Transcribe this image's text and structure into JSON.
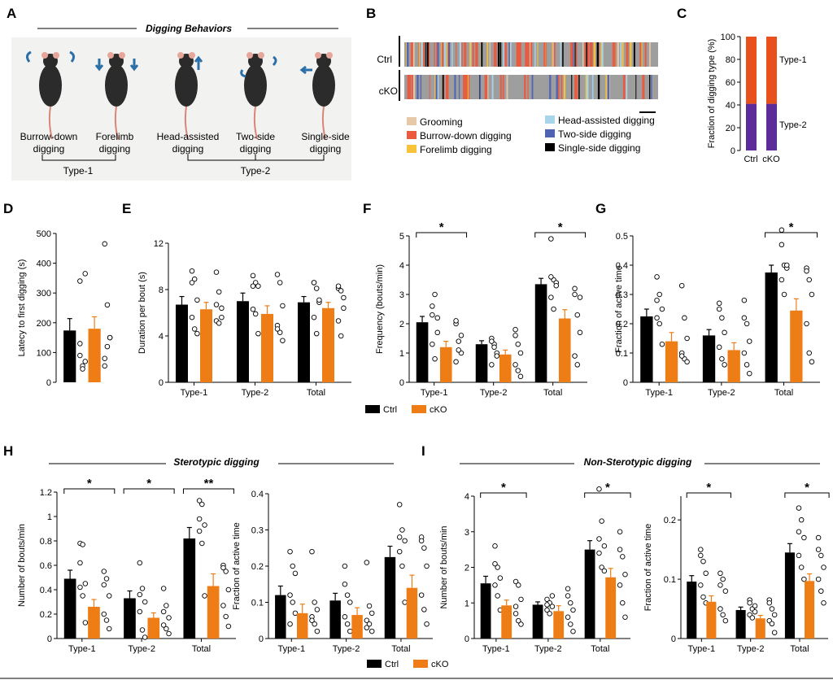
{
  "colors": {
    "ctrl": "#000000",
    "cko": "#ef7d16",
    "type1": "#e8501c",
    "type2": "#5b2c9a"
  },
  "legend": {
    "ctrl": "Ctrl",
    "cko": "cKO"
  },
  "panel_labels": [
    "A",
    "B",
    "C",
    "D",
    "E",
    "F",
    "G",
    "H",
    "I"
  ],
  "panelA": {
    "title": "Digging Behaviors",
    "behaviors": [
      {
        "line1": "Burrow-down",
        "line2": "digging"
      },
      {
        "line1": "Forelimb",
        "line2": "digging"
      },
      {
        "line1": "Head-assisted",
        "line2": "digging"
      },
      {
        "line1": "Two-side",
        "line2": "digging"
      },
      {
        "line1": "Single-side",
        "line2": "digging"
      }
    ],
    "type1_label": "Type-1",
    "type2_label": "Type-2"
  },
  "panelB": {
    "rows": [
      "Ctrl",
      "cKO"
    ],
    "legend_left": [
      {
        "label": "Grooming",
        "color": "#e5c9a8"
      },
      {
        "label": "Burrow-down digging",
        "color": "#ea5a3e"
      },
      {
        "label": "Forelimb digging",
        "color": "#f6c33a"
      }
    ],
    "legend_right": [
      {
        "label": "Head-assisted digging",
        "color": "#a9d5ea"
      },
      {
        "label": "Two-side digging",
        "color": "#4f63b3"
      },
      {
        "label": "Single-side digging",
        "color": "#000000"
      }
    ]
  },
  "panelH": {
    "title": "Sterotypic digging"
  },
  "panelI": {
    "title": "Non-Sterotypic digging"
  },
  "chart_data": [
    {
      "id": "C",
      "type": "bar",
      "stacked": true,
      "categories": [
        "Ctrl",
        "cKO"
      ],
      "ylabel": "Fraction of digging type (%)",
      "ylim": [
        0,
        100
      ],
      "yticks": [
        0,
        20,
        40,
        60,
        80,
        100
      ],
      "series": [
        {
          "name": "Type-2",
          "values": [
            41,
            41
          ]
        },
        {
          "name": "Type-1",
          "values": [
            59,
            59
          ]
        }
      ]
    },
    {
      "id": "D",
      "type": "bar",
      "ylabel": "Latecy to first digging (s)",
      "ylim": [
        0,
        500
      ],
      "yticks": [
        0,
        100,
        200,
        300,
        400,
        500
      ],
      "groups": [
        ""
      ],
      "sig": [
        ""
      ],
      "series": [
        {
          "name": "Ctrl",
          "values": [
            174
          ],
          "err": [
            40
          ],
          "points": [
            [
              90,
              55,
              365,
              340,
              45,
              70,
              130
            ]
          ]
        },
        {
          "name": "cKO",
          "values": [
            180
          ],
          "err": [
            40
          ],
          "points": [
            [
              465,
              260,
              150,
              80,
              120,
              150,
              55
            ]
          ]
        }
      ]
    },
    {
      "id": "E",
      "type": "bar",
      "ylabel": "Duration per bout (s)",
      "ylim": [
        0,
        12
      ],
      "yticks": [
        0,
        4,
        8,
        12
      ],
      "groups": [
        "Type-1",
        "Type-2",
        "Total"
      ],
      "sig": [
        "",
        "",
        ""
      ],
      "series": [
        {
          "name": "Ctrl",
          "values": [
            6.7,
            7.0,
            6.9
          ],
          "err": [
            0.7,
            0.7,
            0.5
          ],
          "points": [
            [
              9.6,
              8.9,
              7.1,
              5.6,
              4.6,
              4.2,
              8.6
            ],
            [
              9.2,
              8.6,
              8.3,
              6.3,
              5.9,
              4.2,
              8.3
            ],
            [
              8.6,
              8.1,
              6.9,
              5.6,
              4.2,
              7.1,
              8.6
            ]
          ]
        },
        {
          "name": "cKO",
          "values": [
            6.3,
            5.9,
            6.4
          ],
          "err": [
            0.6,
            0.7,
            0.5
          ],
          "points": [
            [
              9.5,
              7.8,
              6.4,
              5.3,
              5.1,
              5.6,
              6.7
            ],
            [
              9.3,
              8.6,
              6.6,
              4.9,
              4.3,
              3.6,
              4.6
            ],
            [
              8.1,
              7.9,
              6.4,
              5.3,
              4.0,
              7.3,
              8.3
            ]
          ]
        }
      ]
    },
    {
      "id": "F",
      "type": "bar",
      "ylabel": "Frequency (bouts/min)",
      "ylim": [
        0,
        5
      ],
      "yticks": [
        0,
        1,
        2,
        3,
        4,
        5
      ],
      "groups": [
        "Type-1",
        "Type-2",
        "Total"
      ],
      "sig": [
        "*",
        "",
        "*"
      ],
      "series": [
        {
          "name": "Ctrl",
          "values": [
            2.05,
            1.3,
            3.35
          ],
          "err": [
            0.2,
            0.12,
            0.2
          ],
          "points": [
            [
              2.6,
              3.0,
              2.2,
              1.3,
              0.8,
              1.7,
              2.3
            ],
            [
              1.5,
              1.3,
              1.0,
              1.4,
              1.2,
              0.9,
              0.6
            ],
            [
              4.9,
              3.5,
              3.4,
              2.9,
              2.5,
              3.3,
              3.6
            ]
          ]
        },
        {
          "name": "cKO",
          "values": [
            1.2,
            0.95,
            2.18
          ],
          "err": [
            0.2,
            0.15,
            0.3
          ],
          "points": [
            [
              2.0,
              1.4,
              1.0,
              0.7,
              1.1,
              1.6,
              2.1
            ],
            [
              1.6,
              1.3,
              1.0,
              0.6,
              0.4,
              0.2,
              1.8
            ],
            [
              3.0,
              2.3,
              1.7,
              0.9,
              0.6,
              2.9,
              3.2
            ]
          ]
        }
      ]
    },
    {
      "id": "G",
      "type": "bar",
      "ylabel": "Fraction of active time",
      "ylim": [
        0,
        0.5
      ],
      "yticks": [
        0,
        0.1,
        0.2,
        0.3,
        0.4,
        0.5
      ],
      "groups": [
        "Type-1",
        "Type-2",
        "Total"
      ],
      "sig": [
        "",
        "",
        "*"
      ],
      "series": [
        {
          "name": "Ctrl",
          "values": [
            0.225,
            0.16,
            0.375
          ],
          "err": [
            0.025,
            0.02,
            0.025
          ],
          "points": [
            [
              0.36,
              0.3,
              0.25,
              0.22,
              0.2,
              0.13,
              0.28
            ],
            [
              0.27,
              0.22,
              0.17,
              0.12,
              0.08,
              0.06,
              0.25
            ],
            [
              0.52,
              0.4,
              0.39,
              0.35,
              0.3,
              0.4,
              0.47
            ]
          ]
        },
        {
          "name": "cKO",
          "values": [
            0.14,
            0.11,
            0.245
          ],
          "err": [
            0.03,
            0.025,
            0.04
          ],
          "points": [
            [
              0.33,
              0.22,
              0.15,
              0.1,
              0.08,
              0.07,
              0.09
            ],
            [
              0.28,
              0.2,
              0.14,
              0.1,
              0.06,
              0.03,
              0.22
            ],
            [
              0.39,
              0.35,
              0.3,
              0.2,
              0.1,
              0.07,
              0.38
            ]
          ]
        }
      ]
    },
    {
      "id": "H1",
      "type": "bar",
      "ylabel": "Number of bouts/min",
      "ylim": [
        0,
        1.2
      ],
      "yticks": [
        0,
        0.2,
        0.4,
        0.6,
        0.8,
        1.0,
        1.2
      ],
      "groups": [
        "Type-1",
        "Type-2",
        "Total"
      ],
      "sig": [
        "*",
        "*",
        "**"
      ],
      "series": [
        {
          "name": "Ctrl",
          "values": [
            0.49,
            0.33,
            0.82
          ],
          "err": [
            0.07,
            0.06,
            0.09
          ],
          "points": [
            [
              0.78,
              0.77,
              0.45,
              0.42,
              0.35,
              0.13,
              0.62
            ],
            [
              0.62,
              0.41,
              0.3,
              0.22,
              0.07,
              0.01,
              0.36
            ],
            [
              1.13,
              1.1,
              0.93,
              0.88,
              0.78,
              0.35,
              0.98
            ]
          ]
        },
        {
          "name": "cKO",
          "values": [
            0.26,
            0.17,
            0.43
          ],
          "err": [
            0.06,
            0.04,
            0.1
          ],
          "points": [
            [
              0.55,
              0.49,
              0.35,
              0.2,
              0.15,
              0.08,
              0.44
            ],
            [
              0.41,
              0.27,
              0.17,
              0.11,
              0.08,
              0.04,
              0.22
            ],
            [
              0.6,
              0.55,
              0.4,
              0.27,
              0.18,
              0.1,
              0.58
            ]
          ]
        }
      ]
    },
    {
      "id": "H2",
      "type": "bar",
      "ylabel": "Fraction of active time",
      "ylim": [
        0,
        0.4
      ],
      "yticks": [
        0,
        0.1,
        0.2,
        0.3,
        0.4
      ],
      "groups": [
        "Type-1",
        "Type-2",
        "Total"
      ],
      "sig": [
        "",
        "",
        ""
      ],
      "series": [
        {
          "name": "Ctrl",
          "values": [
            0.12,
            0.105,
            0.225
          ],
          "err": [
            0.025,
            0.02,
            0.03
          ],
          "points": [
            [
              0.24,
              0.2,
              0.18,
              0.12,
              0.1,
              0.07,
              0.04
            ],
            [
              0.2,
              0.12,
              0.1,
              0.06,
              0.04,
              0.02,
              0.15
            ],
            [
              0.37,
              0.3,
              0.27,
              0.24,
              0.2,
              0.1,
              0.28
            ]
          ]
        },
        {
          "name": "cKO",
          "values": [
            0.07,
            0.065,
            0.14
          ],
          "err": [
            0.025,
            0.02,
            0.035
          ],
          "points": [
            [
              0.24,
              0.1,
              0.08,
              0.06,
              0.04,
              0.02,
              0.05
            ],
            [
              0.21,
              0.09,
              0.07,
              0.05,
              0.04,
              0.02,
              0.03
            ],
            [
              0.28,
              0.25,
              0.2,
              0.12,
              0.08,
              0.04,
              0.27
            ]
          ]
        }
      ]
    },
    {
      "id": "I1",
      "type": "bar",
      "ylabel": "Number of bouts/min",
      "ylim": [
        0,
        4
      ],
      "yticks": [
        0,
        1,
        2,
        3,
        4
      ],
      "groups": [
        "Type-1",
        "Type-2",
        "Total"
      ],
      "sig": [
        "*",
        "",
        "*"
      ],
      "series": [
        {
          "name": "Ctrl",
          "values": [
            1.55,
            0.95,
            2.5
          ],
          "err": [
            0.2,
            0.08,
            0.25
          ],
          "points": [
            [
              2.6,
              2.0,
              1.7,
              1.5,
              1.2,
              0.8,
              2.1
            ],
            [
              1.1,
              1.0,
              0.9,
              0.8,
              0.7,
              1.2,
              0.95
            ],
            [
              4.2,
              3.3,
              2.6,
              2.4,
              2.0,
              1.9,
              2.8
            ]
          ]
        },
        {
          "name": "cKO",
          "values": [
            0.93,
            0.77,
            1.72
          ],
          "err": [
            0.15,
            0.15,
            0.25
          ],
          "points": [
            [
              1.6,
              1.5,
              1.1,
              0.7,
              0.5,
              0.4,
              0.9
            ],
            [
              1.4,
              1.0,
              0.8,
              0.6,
              0.4,
              0.2,
              1.2
            ],
            [
              3.0,
              2.3,
              1.8,
              1.5,
              1.0,
              0.6,
              2.5
            ]
          ]
        }
      ]
    },
    {
      "id": "I2",
      "type": "bar",
      "ylabel": "Fraction of active time",
      "ylim": [
        0,
        0.24
      ],
      "yticks": [
        0,
        0.1,
        0.2
      ],
      "groups": [
        "Type-1",
        "Type-2",
        "Total"
      ],
      "sig": [
        "*",
        "",
        "*"
      ],
      "series": [
        {
          "name": "Ctrl",
          "values": [
            0.096,
            0.048,
            0.145
          ],
          "err": [
            0.01,
            0.005,
            0.015
          ],
          "points": [
            [
              0.15,
              0.13,
              0.11,
              0.09,
              0.07,
              0.06,
              0.14
            ],
            [
              0.065,
              0.05,
              0.045,
              0.04,
              0.035,
              0.055,
              0.06
            ],
            [
              0.22,
              0.2,
              0.17,
              0.14,
              0.12,
              0.1,
              0.18
            ]
          ]
        },
        {
          "name": "cKO",
          "values": [
            0.062,
            0.034,
            0.097
          ],
          "err": [
            0.01,
            0.005,
            0.012
          ],
          "points": [
            [
              0.11,
              0.1,
              0.08,
              0.05,
              0.04,
              0.03,
              0.09
            ],
            [
              0.065,
              0.05,
              0.04,
              0.03,
              0.025,
              0.01,
              0.06
            ],
            [
              0.17,
              0.14,
              0.12,
              0.1,
              0.08,
              0.06,
              0.15
            ]
          ]
        }
      ]
    }
  ]
}
